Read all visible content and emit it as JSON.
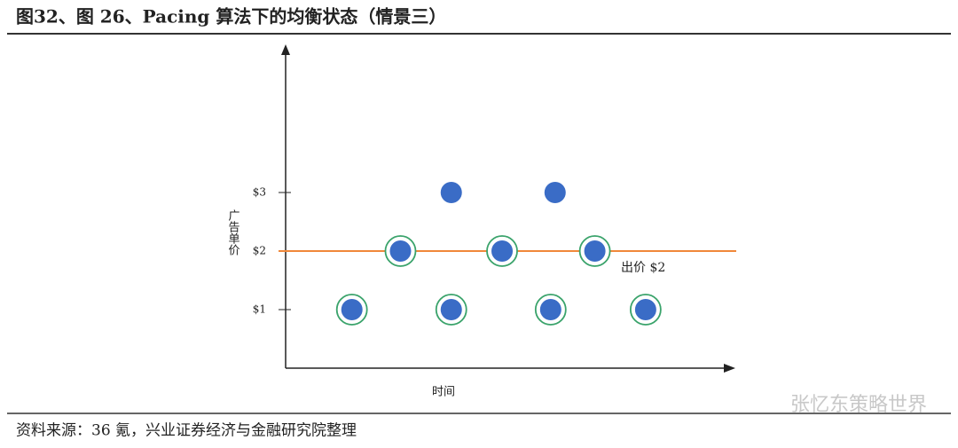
{
  "chart_data": {
    "type": "scatter",
    "title": "图32、图 26、Pacing 算法下的均衡状态（情景三）",
    "y_label": "广告单价",
    "x_label": "时间",
    "source": "资料来源：36 氪，兴业证券经济与金融研究院整理",
    "watermark": "张忆东策略世界",
    "x": [
      1.5,
      2.6,
      3.75,
      3.75,
      4.9,
      6.0,
      6.1,
      7.0,
      8.15
    ],
    "values": [
      1,
      2,
      1,
      3,
      2,
      1,
      3,
      2,
      1
    ],
    "ringed": [
      true,
      true,
      true,
      false,
      true,
      true,
      false,
      true,
      true
    ],
    "color": "#3a6cc6",
    "ring_color": "#3aa36b",
    "xlim": [
      0,
      10
    ],
    "ylim": [
      0,
      5.45
    ],
    "yticks": [
      {
        "value": 1,
        "label": "$1"
      },
      {
        "value": 2,
        "label": "$2"
      },
      {
        "value": 3,
        "label": "$3"
      }
    ],
    "ref_line": {
      "value": 2,
      "color": "#f0883a",
      "label": "出价 $2"
    }
  }
}
